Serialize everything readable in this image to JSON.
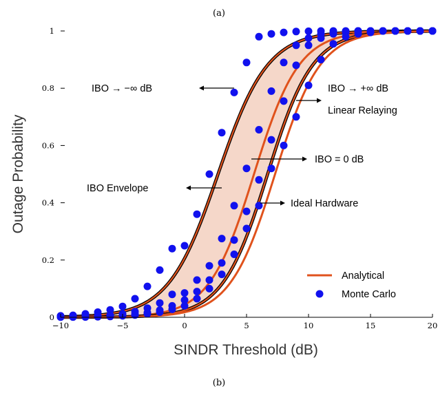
{
  "captions": {
    "top": "(a)",
    "bottom": "(b)"
  },
  "chart_data": {
    "type": "line",
    "xlabel": "SINDR Threshold (dB)",
    "ylabel": "Outage Probability",
    "xlim": [
      -10,
      20
    ],
    "ylim": [
      0,
      1
    ],
    "xticks": [
      -10,
      -5,
      0,
      5,
      10,
      15,
      20
    ],
    "yticks": [
      0,
      0.2,
      0.4,
      0.6,
      0.8,
      1
    ],
    "xtick_labels": [
      "−10",
      "−5",
      "0",
      "5",
      "10",
      "15",
      "20"
    ],
    "ytick_labels": [
      "0",
      "0.2",
      "0.4",
      "0.6",
      "0.8",
      "1"
    ],
    "legend": {
      "placement": "bottom-right",
      "entries": [
        {
          "label": "Analytical",
          "marker": "line"
        },
        {
          "label": "Monte Carlo",
          "marker": "dot"
        }
      ]
    },
    "colors": {
      "analytical": "#E0521C",
      "monte_carlo": "#1111EE",
      "envelope_fill": "#F5D7C9",
      "edge": "#000000"
    },
    "markers_x": [
      -10,
      -9,
      -8,
      -7,
      -6,
      -5,
      -4,
      -3,
      -2,
      -1,
      0,
      1,
      2,
      3,
      4,
      5,
      6,
      7,
      8,
      9,
      10,
      11,
      12,
      13,
      14,
      15,
      16,
      17,
      18,
      19,
      20
    ],
    "series": [
      {
        "id": "ibo_neg_inf",
        "midpoint": 2.7,
        "slope": 0.5,
        "values": [
          0.005,
          0.007,
          0.012,
          0.018,
          0.026,
          0.038,
          0.065,
          0.108,
          0.165,
          0.24,
          0.25,
          0.36,
          0.5,
          0.645,
          0.785,
          0.89,
          0.98,
          0.99,
          0.995,
          0.998,
          0.999,
          1,
          1,
          1,
          1,
          1,
          1,
          1,
          1,
          1,
          1
        ]
      },
      {
        "id": "ibo_0",
        "midpoint": 5.6,
        "slope": 0.55,
        "values": [
          0.001,
          0.002,
          0.003,
          0.005,
          0.008,
          0.012,
          0.02,
          0.032,
          0.05,
          0.08,
          0.085,
          0.13,
          0.18,
          0.275,
          0.39,
          0.52,
          0.655,
          0.79,
          0.89,
          0.95,
          0.975,
          0.99,
          0.995,
          0.998,
          1,
          1,
          1,
          1,
          1,
          1,
          1
        ]
      },
      {
        "id": "ibo_pos_inf",
        "midpoint": 6.7,
        "slope": 0.55,
        "values": [
          0.001,
          0.001,
          0.002,
          0.003,
          0.005,
          0.007,
          0.011,
          0.016,
          0.025,
          0.04,
          0.06,
          0.09,
          0.13,
          0.19,
          0.27,
          0.37,
          0.48,
          0.62,
          0.755,
          0.88,
          0.95,
          0.975,
          0.99,
          0.995,
          1,
          1,
          1,
          1,
          1,
          1,
          1
        ]
      },
      {
        "id": "ideal_hardware",
        "midpoint": 7.3,
        "slope": 0.55,
        "values": [
          0.001,
          0.001,
          0.001,
          0.002,
          0.003,
          0.005,
          0.008,
          0.012,
          0.018,
          0.028,
          0.04,
          0.065,
          0.1,
          0.15,
          0.22,
          0.31,
          0.39,
          0.52,
          0.6,
          0.7,
          0.81,
          0.9,
          0.955,
          0.98,
          0.99,
          0.995,
          1,
          1,
          1,
          1,
          1
        ]
      }
    ],
    "envelope": {
      "between": [
        "ibo_neg_inf",
        "ibo_pos_inf"
      ]
    },
    "annotations": [
      {
        "id": "ibo_neg_inf",
        "text": "IBO → −∞ dB"
      },
      {
        "id": "ibo_pos_inf",
        "text": "IBO → +∞ dB"
      },
      {
        "id": "linear_relaying",
        "text": "Linear Relaying"
      },
      {
        "id": "ibo_0",
        "text": "IBO = 0 dB"
      },
      {
        "id": "ibo_envelope",
        "text": "IBO Envelope"
      },
      {
        "id": "ideal_hardware",
        "text": "Ideal Hardware"
      }
    ]
  }
}
